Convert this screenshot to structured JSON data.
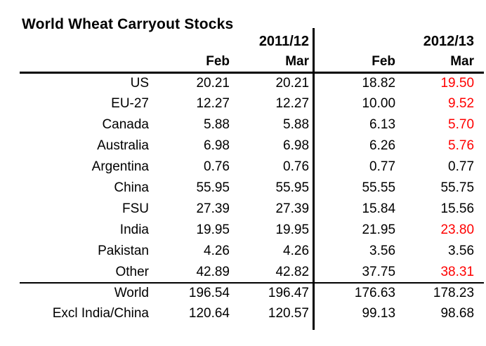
{
  "title": "World Wheat Carryout Stocks",
  "colors": {
    "background": "#ffffff",
    "text": "#000000",
    "highlight": "#ff0000",
    "rules": "#000000"
  },
  "table": {
    "year_groups": [
      "2011/12",
      "2012/13"
    ],
    "month_headers": [
      "Feb",
      "Mar",
      "Feb",
      "Mar"
    ],
    "rows": [
      {
        "label": "US",
        "values": [
          "20.21",
          "20.21",
          "18.82",
          "19.50"
        ],
        "highlight": [
          false,
          false,
          false,
          true
        ]
      },
      {
        "label": "EU-27",
        "values": [
          "12.27",
          "12.27",
          "10.00",
          "9.52"
        ],
        "highlight": [
          false,
          false,
          false,
          true
        ]
      },
      {
        "label": "Canada",
        "values": [
          "5.88",
          "5.88",
          "6.13",
          "5.70"
        ],
        "highlight": [
          false,
          false,
          false,
          true
        ]
      },
      {
        "label": "Australia",
        "values": [
          "6.98",
          "6.98",
          "6.26",
          "5.76"
        ],
        "highlight": [
          false,
          false,
          false,
          true
        ]
      },
      {
        "label": "Argentina",
        "values": [
          "0.76",
          "0.76",
          "0.77",
          "0.77"
        ],
        "highlight": [
          false,
          false,
          false,
          false
        ]
      },
      {
        "label": "China",
        "values": [
          "55.95",
          "55.95",
          "55.55",
          "55.75"
        ],
        "highlight": [
          false,
          false,
          false,
          false
        ]
      },
      {
        "label": "FSU",
        "values": [
          "27.39",
          "27.39",
          "15.84",
          "15.56"
        ],
        "highlight": [
          false,
          false,
          false,
          false
        ]
      },
      {
        "label": "India",
        "values": [
          "19.95",
          "19.95",
          "21.95",
          "23.80"
        ],
        "highlight": [
          false,
          false,
          false,
          true
        ]
      },
      {
        "label": "Pakistan",
        "values": [
          "4.26",
          "4.26",
          "3.56",
          "3.56"
        ],
        "highlight": [
          false,
          false,
          false,
          false
        ]
      },
      {
        "label": "Other",
        "values": [
          "42.89",
          "42.82",
          "37.75",
          "38.31"
        ],
        "highlight": [
          false,
          false,
          false,
          true
        ]
      }
    ],
    "summary_rows": [
      {
        "label": "World",
        "values": [
          "196.54",
          "196.47",
          "176.63",
          "178.23"
        ],
        "highlight": [
          false,
          false,
          false,
          false
        ]
      },
      {
        "label": "Excl India/China",
        "values": [
          "120.64",
          "120.57",
          "99.13",
          "98.68"
        ],
        "highlight": [
          false,
          false,
          false,
          false
        ]
      }
    ]
  },
  "chart_data": {
    "type": "table",
    "title": "World Wheat Carryout Stocks",
    "columns": [
      "2011/12 Feb",
      "2011/12 Mar",
      "2012/13 Feb",
      "2012/13 Mar"
    ],
    "row_labels": [
      "US",
      "EU-27",
      "Canada",
      "Australia",
      "Argentina",
      "China",
      "FSU",
      "India",
      "Pakistan",
      "Other",
      "World",
      "Excl India/China"
    ],
    "values": [
      [
        20.21,
        20.21,
        18.82,
        19.5
      ],
      [
        12.27,
        12.27,
        10.0,
        9.52
      ],
      [
        5.88,
        5.88,
        6.13,
        5.7
      ],
      [
        6.98,
        6.98,
        6.26,
        5.76
      ],
      [
        0.76,
        0.76,
        0.77,
        0.77
      ],
      [
        55.95,
        55.95,
        55.55,
        55.75
      ],
      [
        27.39,
        27.39,
        15.84,
        15.56
      ],
      [
        19.95,
        19.95,
        21.95,
        23.8
      ],
      [
        4.26,
        4.26,
        3.56,
        3.56
      ],
      [
        42.89,
        42.82,
        37.75,
        38.31
      ],
      [
        196.54,
        196.47,
        176.63,
        178.23
      ],
      [
        120.64,
        120.57,
        99.13,
        98.68
      ]
    ],
    "highlighted_cells": [
      [
        "US",
        "2012/13 Mar",
        19.5
      ],
      [
        "EU-27",
        "2012/13 Mar",
        9.52
      ],
      [
        "Canada",
        "2012/13 Mar",
        5.7
      ],
      [
        "Australia",
        "2012/13 Mar",
        5.76
      ],
      [
        "India",
        "2012/13 Mar",
        23.8
      ],
      [
        "Other",
        "2012/13 Mar",
        38.31
      ]
    ],
    "highlight_color": "#ff0000",
    "layout": "year groups separated by vertical rule; thick rule under column headers; rule above World summary rows"
  }
}
